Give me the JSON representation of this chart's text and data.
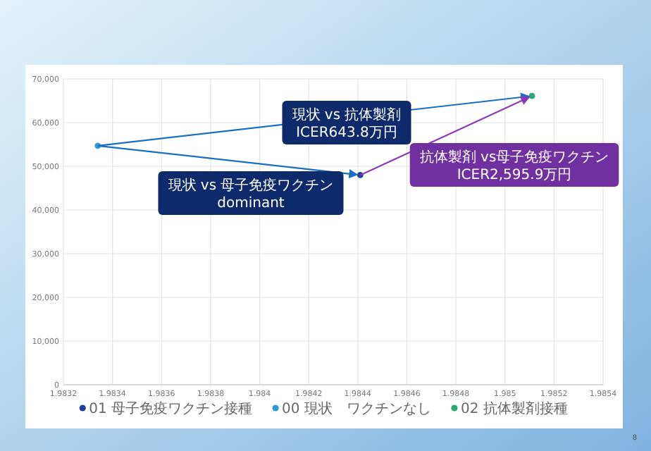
{
  "chart_data": {
    "type": "scatter",
    "marker": "circle",
    "grid": true,
    "legend": "bottom",
    "xlim": [
      1.9832,
      1.9854
    ],
    "xticks": [
      1.9832,
      1.9834,
      1.9836,
      1.9838,
      1.984,
      1.9842,
      1.9844,
      1.9846,
      1.9848,
      1.985,
      1.9852,
      1.9854
    ],
    "ylim": [
      0,
      70000
    ],
    "yticks": [
      {
        "value": 0,
        "label": "0"
      },
      {
        "value": 10000,
        "label": "10,000"
      },
      {
        "value": 20000,
        "label": "20,000"
      },
      {
        "value": 30000,
        "label": "30,000"
      },
      {
        "value": 40000,
        "label": "40,000"
      },
      {
        "value": 50000,
        "label": "50,000"
      },
      {
        "value": 60000,
        "label": "60,000"
      },
      {
        "value": 70000,
        "label": "70,000"
      }
    ],
    "series": [
      {
        "name": "01 母子免疫ワクチン接種",
        "color": "#1f3f9f",
        "x": [
          1.98441
        ],
        "values": [
          48000
        ]
      },
      {
        "name": "00 現状　ワクチンなし",
        "color": "#2e9bd6",
        "x": [
          1.98334
        ],
        "values": [
          54700
        ]
      },
      {
        "name": "02 抗体製剤接種",
        "color": "#2aa876",
        "x": [
          1.98511
        ],
        "values": [
          66100
        ]
      }
    ],
    "annotations": [
      "現状 vs 抗体製剤\nICER643.8万円",
      "現状 vs 母子免疫ワクチン\ndominant",
      "抗体製剤 vs母子免疫ワクチン\nICER2,595.9万円",
      "8"
    ]
  }
}
